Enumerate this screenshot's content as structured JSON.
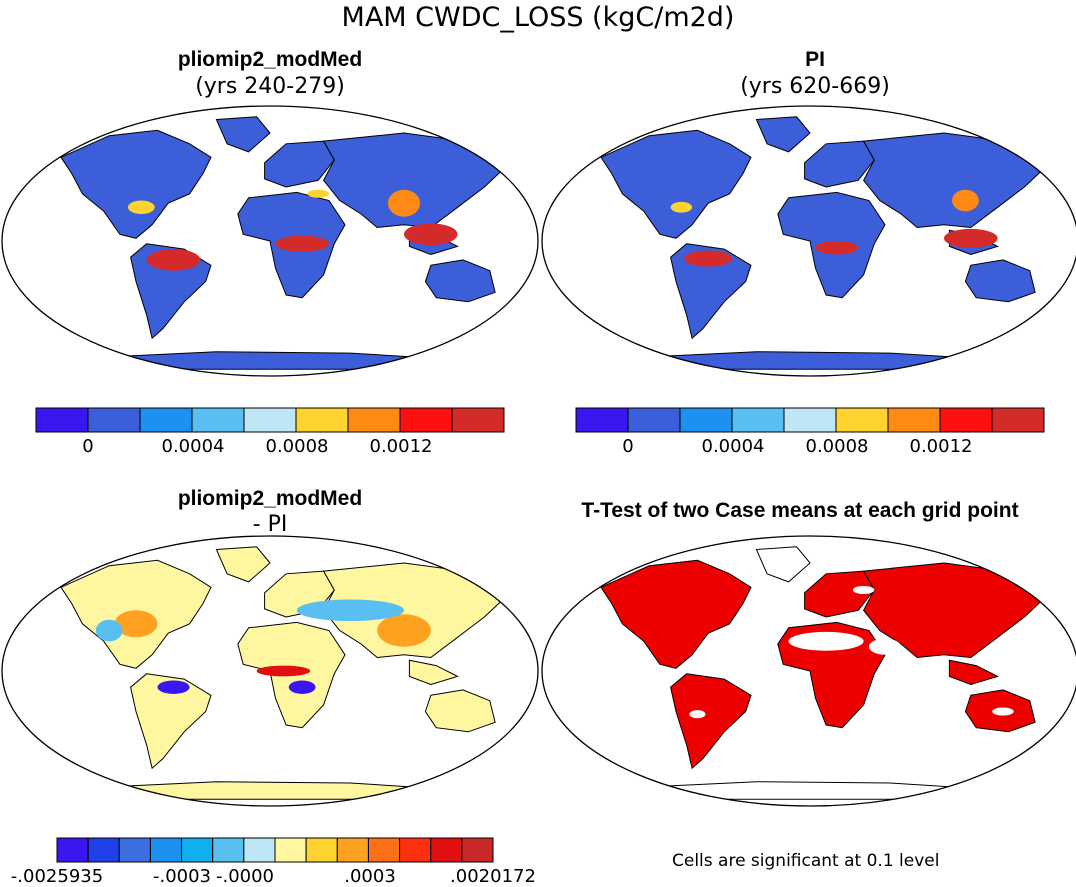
{
  "figure": {
    "title": "MAM CWDC_LOSS (kgC/m2d)"
  },
  "panels": [
    {
      "id": "modmed",
      "title": "pliomip2_modMed",
      "subtitle": "(yrs 240-279)",
      "colorbar": {
        "colors": [
          "#3a17f0",
          "#3c5ed8",
          "#1e90f0",
          "#58bff0",
          "#bfe6f5",
          "#fed330",
          "#fe8a15",
          "#fe1010",
          "#d42a2a"
        ],
        "tick_labels": [
          "0",
          "0.0004",
          "0.0008",
          "0.0012"
        ],
        "tick_values": [
          0,
          0.0004,
          0.0008,
          0.0012
        ],
        "boundaries": [
          -0.0002,
          0,
          0.0002,
          0.0004,
          0.0006,
          0.0008,
          0.001,
          0.0012,
          0.0014
        ]
      }
    },
    {
      "id": "pi",
      "title": "PI",
      "subtitle": "(yrs 620-669)",
      "colorbar": {
        "colors": [
          "#3a17f0",
          "#3c5ed8",
          "#1e90f0",
          "#58bff0",
          "#bfe6f5",
          "#fed330",
          "#fe8a15",
          "#fe1010",
          "#d42a2a"
        ],
        "tick_labels": [
          "0",
          "0.0004",
          "0.0008",
          "0.0012"
        ],
        "tick_values": [
          0,
          0.0004,
          0.0008,
          0.0012
        ],
        "boundaries": [
          -0.0002,
          0,
          0.0002,
          0.0004,
          0.0006,
          0.0008,
          0.001,
          0.0012,
          0.0014
        ]
      }
    },
    {
      "id": "diff",
      "title": "pliomip2_modMed",
      "subtitle": "- PI",
      "colorbar": {
        "colors": [
          "#3a17f0",
          "#2040e8",
          "#3c6ee0",
          "#1e90f0",
          "#10b0f0",
          "#58bff0",
          "#bfe6f5",
          "#fef7a0",
          "#fed330",
          "#fea020",
          "#fe7015",
          "#fe3010",
          "#e01010",
          "#c82828"
        ],
        "tick_labels": [
          "-.0025935",
          "-.0003",
          "-.0000",
          ".0003",
          ".0020172"
        ]
      }
    },
    {
      "id": "ttest",
      "title": "T-Test of two Case means at each grid point",
      "note": "Cells are significant at 0.1 level",
      "significant_color": "#ee0000"
    }
  ],
  "colors": {
    "land_low": "#3c5ed8",
    "land_warm": "#fed330",
    "land_mid": "#fe8a15",
    "land_high": "#d42a2a",
    "diff_base": "#fef7a0",
    "diff_neg": "#58bff0",
    "diff_neg_strong": "#3a17f0",
    "sig": "#ee0000"
  }
}
